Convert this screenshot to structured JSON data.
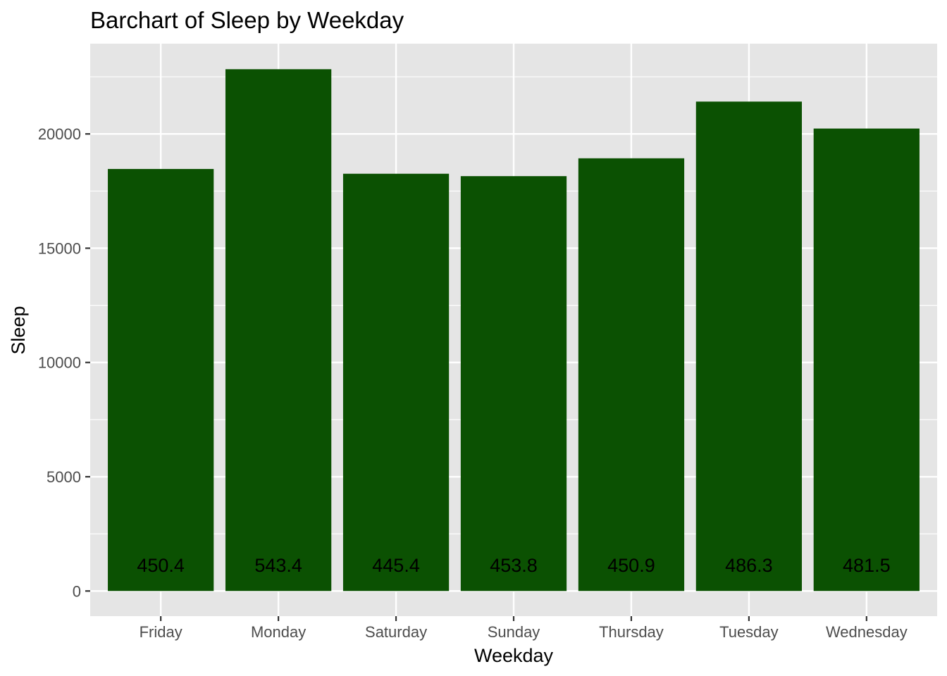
{
  "chart_data": {
    "type": "bar",
    "title": "Barchart of Sleep by Weekday",
    "xlabel": "Weekday",
    "ylabel": "Sleep",
    "categories": [
      "Friday",
      "Monday",
      "Saturday",
      "Sunday",
      "Thursday",
      "Tuesday",
      "Wednesday"
    ],
    "values": [
      18467,
      22832,
      18258,
      18153,
      18934,
      21415,
      20235
    ],
    "data_labels": [
      "450.4",
      "543.4",
      "445.4",
      "453.8",
      "450.9",
      "486.3",
      "481.5"
    ],
    "y_ticks": [
      0,
      5000,
      10000,
      15000,
      20000
    ],
    "y_tick_labels": [
      "0",
      "5000",
      "10000",
      "15000",
      "20000"
    ],
    "ylim": [
      -1100,
      23950
    ],
    "grid": true,
    "legend": "none",
    "colors": {
      "bar": "#0b5102",
      "panel": "#e5e5e5",
      "grid": "#ffffff"
    }
  }
}
